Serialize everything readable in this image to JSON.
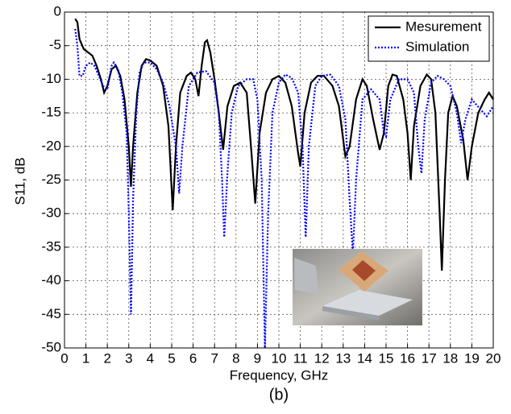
{
  "chart_data": {
    "type": "line",
    "xlabel": "Frequency, GHz",
    "ylabel": "S11, dB",
    "caption": "(b)",
    "xlim": [
      0,
      20
    ],
    "ylim": [
      -50,
      0
    ],
    "xticks": [
      0,
      1,
      2,
      3,
      4,
      5,
      6,
      7,
      8,
      9,
      10,
      11,
      12,
      13,
      14,
      15,
      16,
      17,
      18,
      19,
      20
    ],
    "yticks": [
      -50,
      -45,
      -40,
      -35,
      -30,
      -25,
      -20,
      -15,
      -10,
      -5,
      0
    ],
    "grid": true,
    "legend": "upper right",
    "series": [
      {
        "name": "Mesurement",
        "color": "#000000",
        "style": "solid",
        "x": [
          0.5,
          0.6,
          0.7,
          0.9,
          1.1,
          1.3,
          1.5,
          1.7,
          1.85,
          2.0,
          2.2,
          2.4,
          2.6,
          2.8,
          3.0,
          3.1,
          3.2,
          3.4,
          3.6,
          3.8,
          4.0,
          4.3,
          4.6,
          4.85,
          5.05,
          5.2,
          5.4,
          5.7,
          5.9,
          6.1,
          6.25,
          6.4,
          6.55,
          6.65,
          6.8,
          7.0,
          7.2,
          7.4,
          7.6,
          7.9,
          8.2,
          8.5,
          8.7,
          8.9,
          9.1,
          9.4,
          9.7,
          10.0,
          10.3,
          10.6,
          10.9,
          11.0,
          11.2,
          11.5,
          11.8,
          12.1,
          12.5,
          12.8,
          13.1,
          13.3,
          13.6,
          13.9,
          14.1,
          14.4,
          14.7,
          14.9,
          15.1,
          15.3,
          15.5,
          15.8,
          16.0,
          16.15,
          16.3,
          16.6,
          16.9,
          17.1,
          17.3,
          17.5,
          17.6,
          17.75,
          17.9,
          18.1,
          18.3,
          18.6,
          18.8,
          19.0,
          19.3,
          19.6,
          19.8,
          20
        ],
        "values": [
          -1,
          -1.5,
          -4,
          -5.5,
          -6,
          -6.5,
          -8,
          -10,
          -12,
          -11,
          -8.5,
          -8,
          -9.5,
          -13,
          -20,
          -26,
          -20,
          -12,
          -8,
          -7,
          -7.2,
          -8,
          -11,
          -17,
          -29.5,
          -20,
          -12,
          -9.5,
          -9,
          -10,
          -12.5,
          -8,
          -4.5,
          -4.2,
          -6,
          -10,
          -15,
          -20.5,
          -14,
          -11,
          -10.5,
          -12,
          -20,
          -28.5,
          -18,
          -12,
          -10,
          -9.5,
          -10.5,
          -14,
          -21,
          -23,
          -15,
          -10.5,
          -9.5,
          -9.5,
          -11,
          -14,
          -21.5,
          -20,
          -13,
          -10,
          -11,
          -16,
          -20.5,
          -18,
          -11,
          -9.3,
          -9.5,
          -13,
          -18,
          -25,
          -17,
          -11,
          -9.3,
          -10,
          -15,
          -30,
          -38.5,
          -25,
          -15,
          -12.5,
          -14,
          -19,
          -25,
          -20,
          -15,
          -13,
          -12,
          -13
        ]
      },
      {
        "name": "Simulation",
        "color": "#0000ff",
        "style": "dotted",
        "x": [
          0.5,
          0.6,
          0.7,
          0.85,
          1.0,
          1.2,
          1.4,
          1.6,
          1.8,
          2.0,
          2.2,
          2.3,
          2.5,
          2.7,
          2.9,
          3.0,
          3.1,
          3.2,
          3.35,
          3.5,
          3.7,
          4.0,
          4.3,
          4.6,
          4.9,
          5.2,
          5.35,
          5.5,
          5.8,
          6.2,
          6.6,
          7.0,
          7.2,
          7.35,
          7.45,
          7.6,
          7.8,
          8.1,
          8.5,
          8.8,
          9.0,
          9.2,
          9.35,
          9.5,
          9.7,
          10.0,
          10.3,
          10.6,
          10.9,
          11.1,
          11.25,
          11.4,
          11.7,
          12.0,
          12.4,
          12.8,
          13.1,
          13.3,
          13.45,
          13.6,
          13.9,
          14.3,
          14.7,
          14.9,
          15.0,
          15.2,
          15.6,
          16.0,
          16.3,
          16.5,
          16.65,
          16.8,
          17.1,
          17.4,
          17.7,
          18.0,
          18.3,
          18.5,
          18.7,
          19.0,
          19.4,
          19.7,
          20
        ],
        "values": [
          -2.5,
          -5,
          -9.5,
          -9.5,
          -8,
          -7.5,
          -8,
          -9.5,
          -11,
          -11.5,
          -8,
          -7.5,
          -8.5,
          -12,
          -18,
          -30,
          -45,
          -28,
          -15,
          -9,
          -7.5,
          -7.5,
          -8.5,
          -10.5,
          -14,
          -20,
          -27,
          -20,
          -11,
          -9,
          -8.8,
          -10.5,
          -15,
          -25,
          -33.5,
          -24,
          -15,
          -11,
          -10,
          -10,
          -13,
          -25,
          -50,
          -30,
          -15,
          -10.5,
          -9.3,
          -9.8,
          -12,
          -20,
          -33.5,
          -20,
          -11,
          -9.5,
          -9.3,
          -11,
          -16,
          -28,
          -36,
          -25,
          -13,
          -11.5,
          -13,
          -18,
          -18.5,
          -13,
          -10,
          -10,
          -12,
          -20,
          -24,
          -16,
          -10.5,
          -9.5,
          -10,
          -11,
          -15,
          -19.5,
          -16,
          -13,
          -14.5,
          -15.5,
          -14
        ]
      }
    ]
  }
}
